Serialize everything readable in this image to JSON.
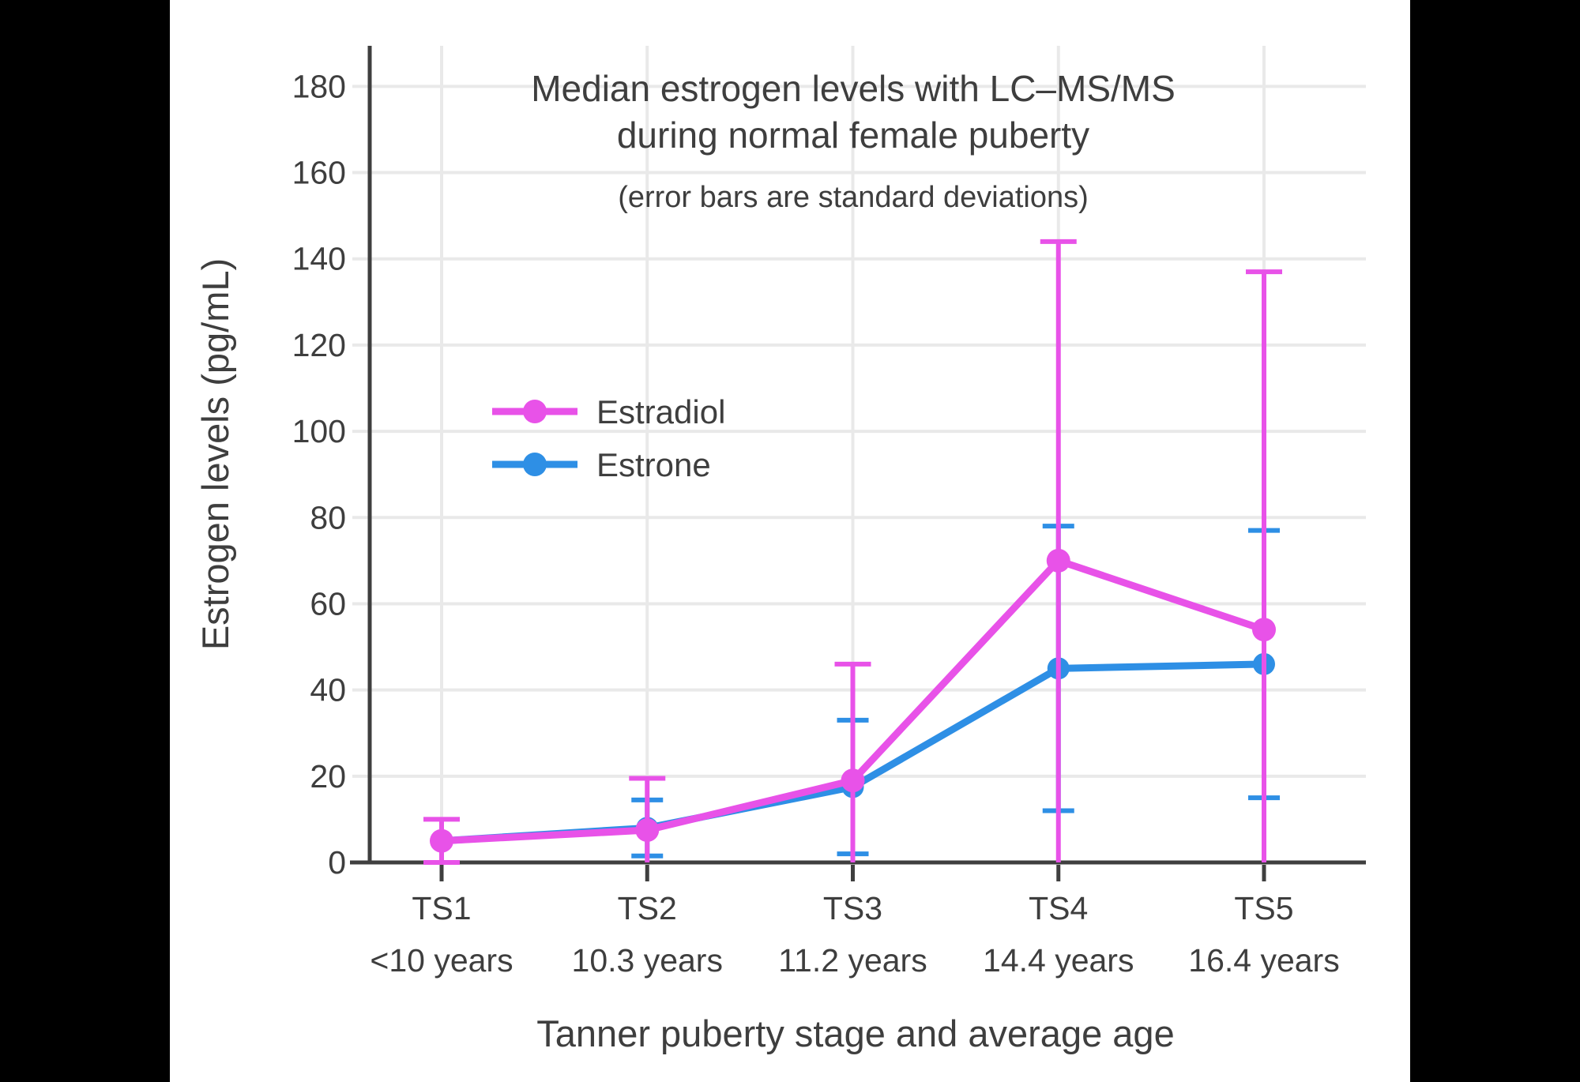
{
  "colors": {
    "background": "#000000",
    "panel": "#FFFFFF",
    "grid": "#E9E9E9",
    "spine": "#3F3F3F",
    "text": "#3E3E3E"
  },
  "chart_data": {
    "type": "line",
    "title_line1": "Median estrogen levels with LC–MS/MS",
    "title_line2": "during normal female puberty",
    "subtitle": "(error bars are standard deviations)",
    "xlabel": "Tanner puberty stage and average age",
    "ylabel": "Estrogen levels (pg/mL)",
    "categories": [
      "TS1",
      "TS2",
      "TS3",
      "TS4",
      "TS5"
    ],
    "category_ages": [
      "<10 years",
      "10.3 years",
      "11.2 years",
      "14.4 years",
      "16.4 years"
    ],
    "y_ticks": [
      0,
      20,
      40,
      60,
      80,
      100,
      120,
      140,
      160,
      180
    ],
    "ylim": [
      0,
      189.4
    ],
    "grid": true,
    "error_bars": "standard deviations, clipped at 0",
    "legend_position": "inside-upper-left",
    "legend_order": [
      "Estradiol",
      "Estrone"
    ],
    "series": [
      {
        "name": "Estrone",
        "color": "#2E8FE5",
        "values": [
          5,
          8,
          17.5,
          45,
          46
        ],
        "sd": [
          null,
          6.5,
          15.5,
          33,
          31
        ]
      },
      {
        "name": "Estradiol",
        "color": "#E852E8",
        "values": [
          5,
          7.5,
          19,
          70,
          54
        ],
        "sd": [
          5,
          12,
          27,
          74,
          83
        ]
      }
    ]
  }
}
